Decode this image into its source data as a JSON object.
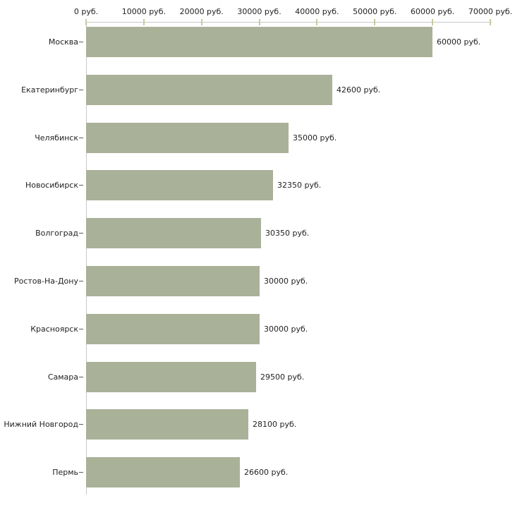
{
  "chart_data": {
    "type": "bar",
    "orientation": "horizontal",
    "title": "",
    "xlabel": "",
    "ylabel": "",
    "unit": "руб.",
    "categories": [
      "Москва",
      "Екатеринбург",
      "Челябинск",
      "Новосибирск",
      "Волгоград",
      "Ростов-На-Дону",
      "Красноярск",
      "Самара",
      "Нижний Новгород",
      "Пермь"
    ],
    "values": [
      60000,
      42600,
      35000,
      32350,
      30350,
      30000,
      30000,
      29500,
      28100,
      26600
    ],
    "value_labels": [
      "60000 руб.",
      "42600 руб.",
      "35000 руб.",
      "32350 руб.",
      "30350 руб.",
      "30000 руб.",
      "30000 руб.",
      "29500 руб.",
      "28100 руб.",
      "26600 руб."
    ],
    "x_axis": {
      "position": "top",
      "min": 0,
      "max": 70000,
      "tick_interval": 10000,
      "tick_labels": [
        "0 руб.",
        "10000 руб.",
        "20000 руб.",
        "30000 руб.",
        "40000 руб.",
        "50000 руб.",
        "60000 руб.",
        "70000 руб."
      ]
    },
    "grid": false,
    "legend": false,
    "colors": {
      "bar": "#aab199",
      "axis_line": "#c8c8c8",
      "x_tick": "#cbc99e",
      "y_tick": "#5a5a5a",
      "text": "#222222",
      "background": "#ffffff"
    }
  }
}
